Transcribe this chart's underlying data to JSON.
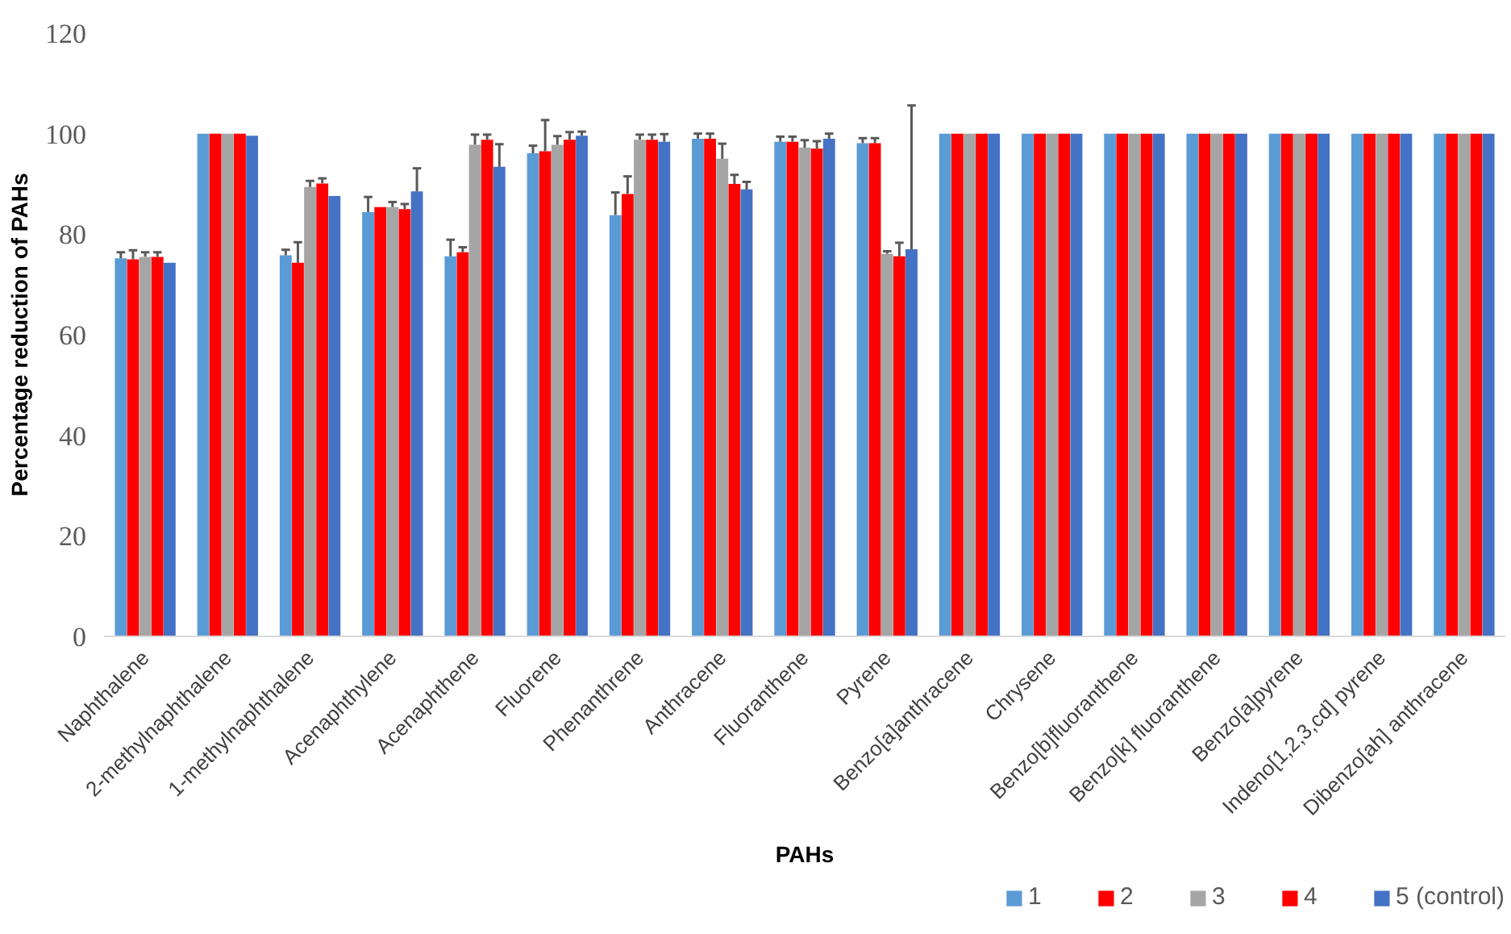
{
  "chart_data": {
    "type": "bar",
    "xlabel": "PAHs",
    "ylabel": "Percentage reduction of PAHs",
    "categories": [
      "Naphthalene",
      "2-methylnaphthalene",
      "1-methylnaphthalene",
      "Acenaphthylene",
      "Acenaphthene",
      "Fluorene",
      "Phenanthrene",
      "Anthracene",
      "Fluoranthene",
      "Pyrene",
      "Benzo[a]anthracene",
      "Chrysene",
      "Benzo[b]fluoranthene",
      "Benzo[k] fluoranthene",
      "Benzo[a]pyrene",
      "Indeno[1,2,3,cd] pyrene",
      "Dibenzo[ah] anthracene"
    ],
    "ylim": [
      0,
      120
    ],
    "yticks": [
      0,
      20,
      40,
      60,
      80,
      100,
      120
    ],
    "grid": false,
    "legend": "bottom right",
    "series": [
      {
        "name": "1",
        "color": "#5b9bd5",
        "values": [
          75.2,
          100,
          75.8,
          84.4,
          75.6,
          96.1,
          83.8,
          99,
          98.4,
          98.1,
          100,
          100,
          100,
          100,
          100,
          100,
          100
        ],
        "errors": [
          [
            75.2,
            76.4
          ],
          null,
          [
            75.8,
            76.9
          ],
          [
            84.4,
            87.4
          ],
          [
            75.6,
            78.9
          ],
          [
            96.1,
            97.6
          ],
          [
            83.8,
            88.3
          ],
          [
            99,
            100
          ],
          [
            98.4,
            99.4
          ],
          [
            98.1,
            99.1
          ],
          null,
          null,
          null,
          null,
          null,
          null,
          null
        ]
      },
      {
        "name": "2",
        "color": "#ff0000",
        "values": [
          75,
          100,
          74.3,
          85.4,
          76.4,
          96.5,
          88,
          99,
          98.4,
          98.1,
          100,
          100,
          100,
          100,
          100,
          100,
          100
        ],
        "errors": [
          [
            75,
            76.8
          ],
          null,
          [
            74.3,
            78.4
          ],
          null,
          [
            76.4,
            77.4
          ],
          [
            96.5,
            102.7
          ],
          [
            88,
            91.5
          ],
          [
            99,
            100
          ],
          [
            98.4,
            99.4
          ],
          [
            98.1,
            99.1
          ],
          null,
          null,
          null,
          null,
          null,
          null,
          null
        ]
      },
      {
        "name": "3",
        "color": "#a5a5a5",
        "values": [
          75.5,
          100,
          89.4,
          85.4,
          97.8,
          97.8,
          98.8,
          95,
          97.2,
          76.1,
          100,
          100,
          100,
          100,
          100,
          100,
          100
        ],
        "errors": [
          [
            75.5,
            76.4
          ],
          null,
          [
            89.4,
            90.6
          ],
          [
            85.4,
            86.4
          ],
          [
            97.8,
            99.8
          ],
          [
            97.8,
            99.5
          ],
          [
            98.8,
            99.8
          ],
          [
            95,
            98
          ],
          [
            97.2,
            98.7
          ],
          [
            76.1,
            76.6
          ],
          null,
          null,
          null,
          null,
          null,
          null,
          null
        ]
      },
      {
        "name": "4",
        "color": "#ff0000",
        "values": [
          75.5,
          100,
          90.1,
          85,
          98.8,
          98.8,
          98.8,
          90,
          97,
          75.6,
          100,
          100,
          100,
          100,
          100,
          100,
          100
        ],
        "errors": [
          [
            75.5,
            76.4
          ],
          null,
          [
            90.1,
            91.1
          ],
          [
            85,
            86
          ],
          [
            98.8,
            99.8
          ],
          [
            98.8,
            100.3
          ],
          [
            98.8,
            99.8
          ],
          [
            90,
            91.8
          ],
          [
            97,
            98.5
          ],
          [
            75.6,
            78.3
          ],
          null,
          null,
          null,
          null,
          null,
          null,
          null
        ]
      },
      {
        "name": "5 (control)",
        "color": "#4472c4",
        "values": [
          74.3,
          99.6,
          87.6,
          88.5,
          93.4,
          99.6,
          98.4,
          88.9,
          99,
          77,
          100,
          100,
          100,
          100,
          100,
          100,
          100
        ],
        "errors": [
          null,
          null,
          null,
          [
            88.5,
            93.1
          ],
          [
            93.4,
            97.9
          ],
          [
            99.6,
            100.4
          ],
          [
            98.4,
            99.9
          ],
          [
            88.9,
            90.4
          ],
          [
            99,
            100
          ],
          [
            77,
            105.6
          ],
          null,
          null,
          null,
          null,
          null,
          null,
          null
        ]
      }
    ]
  }
}
